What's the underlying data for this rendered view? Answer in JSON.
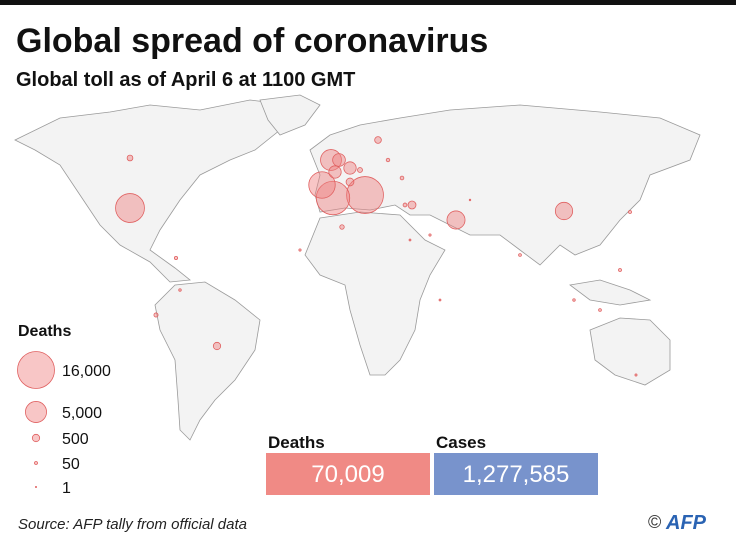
{
  "title": "Global spread of coronavirus",
  "subtitle": "Global toll as of April 6 at 1100 GMT",
  "legend": {
    "title": "Deaths",
    "entries": [
      {
        "value": 16000,
        "label": "16,000"
      },
      {
        "value": 5000,
        "label": "5,000"
      },
      {
        "value": 500,
        "label": "500"
      },
      {
        "value": 50,
        "label": "50"
      },
      1
    ]
  },
  "bubbles": [
    15900,
    13000,
    9600,
    8000,
    4900,
    3600,
    3300,
    1700,
    1600,
    1600,
    600,
    580,
    500,
    400,
    280,
    200,
    150,
    120,
    100,
    90,
    80,
    60,
    50,
    50,
    40,
    40,
    30,
    30,
    20,
    20,
    15,
    10,
    10,
    5
  ],
  "totals": [
    {
      "label": "Deaths",
      "value": "70,009"
    },
    {
      "label": "Cases",
      "value": "1,277,585"
    }
  ],
  "source": "Source: AFP tally from official data",
  "credit": "AFP"
}
